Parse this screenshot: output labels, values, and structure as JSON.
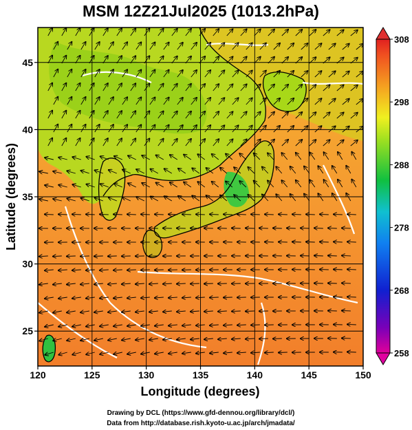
{
  "title": "MSM 12Z21Jul2025 (1013.2hPa)",
  "x_axis": {
    "label": "Longitude (degrees)",
    "range": [
      120,
      150
    ],
    "ticks": [
      "120",
      "125",
      "130",
      "135",
      "140",
      "145",
      "150"
    ]
  },
  "y_axis": {
    "label": "Latitude  (degrees)",
    "range": [
      22.4,
      47.6
    ],
    "ticks": [
      "25",
      "30",
      "35",
      "40",
      "45"
    ]
  },
  "colorbar": {
    "range": [
      258,
      308
    ],
    "ticks": [
      "258",
      "268",
      "278",
      "288",
      "298",
      "308"
    ]
  },
  "map_layers": {
    "shading": "surface temperature (orange = warm ocean, green/yellow = cooler land)",
    "contours": "white isolines",
    "arrows": "black wind streamlines"
  },
  "credits": {
    "line1": "Drawing by DCL (https://www.gfd-dennou.org/library/dcl/)",
    "line2": "Data from http://database.rish.kyoto-u.ac.jp/arch/jmadata/"
  }
}
